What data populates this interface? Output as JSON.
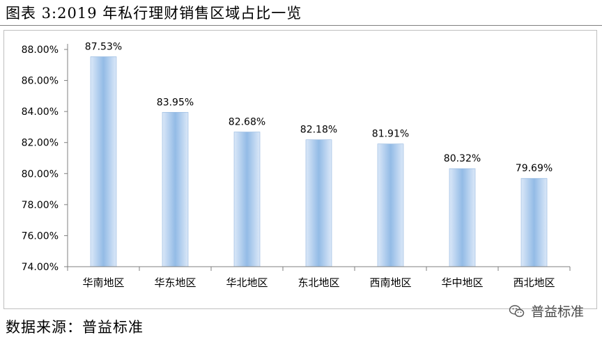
{
  "header": {
    "title": "图表 3:2019 年私行理财销售区域占比一览"
  },
  "footer": {
    "source": "数据来源：普益标准"
  },
  "watermark": {
    "text": "普益标准",
    "icon": "wechat-icon"
  },
  "colors": {
    "bar_light": "#dbe8f8",
    "bar_mid": "#93bbe6",
    "bar_edge": "#8fb4de",
    "axis": "#7f7f7f"
  },
  "chart_data": {
    "type": "bar",
    "title": "",
    "xlabel": "",
    "ylabel": "",
    "categories": [
      "华南地区",
      "华东地区",
      "华北地区",
      "东北地区",
      "西南地区",
      "华中地区",
      "西北地区"
    ],
    "values": [
      87.53,
      83.95,
      82.68,
      82.18,
      81.91,
      80.32,
      79.69
    ],
    "data_labels": [
      "87.53%",
      "83.95%",
      "82.68%",
      "82.18%",
      "81.91%",
      "80.32%",
      "79.69%"
    ],
    "ylim": [
      74,
      88
    ],
    "yticks": [
      74,
      76,
      78,
      80,
      82,
      84,
      86,
      88
    ],
    "ytick_labels": [
      "74.00%",
      "76.00%",
      "78.00%",
      "80.00%",
      "82.00%",
      "84.00%",
      "86.00%",
      "88.00%"
    ],
    "grid": false,
    "legend": "none"
  }
}
